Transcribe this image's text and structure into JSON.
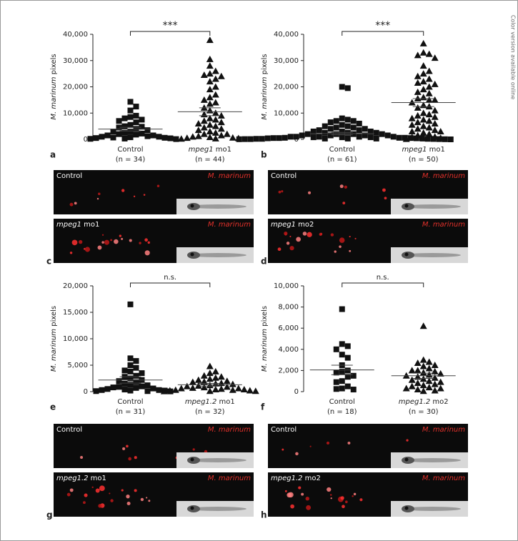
{
  "side_note": "Color version available online",
  "chart_data": [
    {
      "type": "scatter",
      "panel": "a",
      "y_label": [
        {
          "text": "M. marinum",
          "italic": true
        },
        {
          "text": " pixels"
        }
      ],
      "ylim": [
        0,
        40000
      ],
      "yticks": [
        0,
        {
          "value": 10000,
          "label": "10,000"
        },
        {
          "value": 20000,
          "label": "20,000"
        },
        {
          "value": 30000,
          "label": "30,000"
        },
        {
          "value": 40000,
          "label": "40,000"
        }
      ],
      "significance": "***",
      "groups": [
        {
          "name": [
            {
              "text": "Control"
            }
          ],
          "n_label": "(n = 34)",
          "marker": "square",
          "color": "#111111",
          "mean": 3900,
          "sem": 700,
          "values": [
            14300,
            12500,
            11000,
            9000,
            8500,
            8000,
            7500,
            7000,
            6500,
            5500,
            5000,
            4800,
            4500,
            4000,
            3500,
            3000,
            3000,
            2500,
            2200,
            2000,
            1800,
            1500,
            1500,
            1200,
            1000,
            1000,
            800,
            700,
            600,
            500,
            400,
            300,
            200,
            100
          ]
        },
        {
          "name": [
            {
              "text": "mpeg1",
              "italic": true
            },
            {
              "text": " mo1"
            }
          ],
          "n_label": "(n = 44)",
          "marker": "triangle",
          "color": "#111111",
          "mean": 10500,
          "sem": 1500,
          "values": [
            37800,
            30500,
            28000,
            26000,
            25000,
            24500,
            24000,
            23000,
            22000,
            20000,
            19000,
            17000,
            16000,
            15000,
            14000,
            13500,
            12000,
            11000,
            10000,
            9500,
            9000,
            8000,
            7500,
            7000,
            6500,
            6000,
            5500,
            5000,
            4500,
            4000,
            3500,
            3000,
            2500,
            2000,
            2000,
            1500,
            1200,
            1000,
            800,
            600,
            500,
            400,
            300,
            200
          ]
        }
      ]
    },
    {
      "type": "scatter",
      "panel": "b",
      "y_label": [
        {
          "text": "M. marinum",
          "italic": true
        },
        {
          "text": " pixels"
        }
      ],
      "ylim": [
        0,
        40000
      ],
      "yticks": [
        0,
        {
          "value": 10000,
          "label": "10,000"
        },
        {
          "value": 20000,
          "label": "20,000"
        },
        {
          "value": 30000,
          "label": "30,000"
        },
        {
          "value": 40000,
          "label": "40,000"
        }
      ],
      "significance": "***",
      "groups": [
        {
          "name": [
            {
              "text": "Control"
            }
          ],
          "n_label": "(n = 61)",
          "marker": "square",
          "color": "#111111",
          "mean": 2200,
          "sem": 450,
          "values": [
            20000,
            19500,
            8000,
            7500,
            7000,
            7000,
            6500,
            6000,
            5500,
            5000,
            5000,
            4500,
            4500,
            4000,
            4000,
            3500,
            3500,
            3000,
            3000,
            3000,
            2500,
            2500,
            2500,
            2000,
            2000,
            2000,
            2000,
            1500,
            1500,
            1500,
            1500,
            1000,
            1000,
            1000,
            1000,
            1000,
            800,
            800,
            800,
            600,
            600,
            600,
            500,
            500,
            500,
            400,
            400,
            400,
            300,
            300,
            300,
            200,
            200,
            200,
            150,
            100,
            100,
            100,
            50,
            50,
            0
          ]
        },
        {
          "name": [
            {
              "text": "mpeg1",
              "italic": true
            },
            {
              "text": " mo1"
            }
          ],
          "n_label": "(n = 50)",
          "marker": "triangle",
          "color": "#111111",
          "mean": 14000,
          "sem": 1500,
          "values": [
            36500,
            33000,
            32500,
            32000,
            31000,
            28000,
            26000,
            25000,
            24000,
            23000,
            22000,
            21500,
            21000,
            20000,
            19000,
            18000,
            17500,
            16000,
            15500,
            15000,
            15000,
            14000,
            13000,
            12500,
            12000,
            11000,
            10000,
            9500,
            9000,
            8500,
            8000,
            7500,
            7000,
            6500,
            6000,
            5500,
            5000,
            4500,
            4000,
            3500,
            3000,
            3000,
            2500,
            2000,
            1500,
            1000,
            800,
            500,
            300,
            100
          ]
        }
      ]
    },
    {
      "type": "scatter",
      "panel": "e",
      "y_label": [
        {
          "text": "M. marinum",
          "italic": true
        },
        {
          "text": " pixels"
        }
      ],
      "ylim": [
        0,
        20000
      ],
      "yticks": [
        0,
        {
          "value": 5000,
          "label": "5,000"
        },
        {
          "value": 10000,
          "label": "10,000"
        },
        {
          "value": 15000,
          "label": "15,000"
        },
        {
          "value": 20000,
          "label": "20,000"
        }
      ],
      "significance": "n.s.",
      "groups": [
        {
          "name": [
            {
              "text": "Control"
            }
          ],
          "n_label": "(n = 31)",
          "marker": "square",
          "color": "#111111",
          "mean": 2200,
          "sem": 600,
          "values": [
            16500,
            6300,
            5800,
            5000,
            4500,
            4000,
            3800,
            3500,
            3000,
            2800,
            2500,
            2200,
            2000,
            1800,
            1500,
            1300,
            1200,
            1000,
            900,
            800,
            700,
            600,
            500,
            400,
            300,
            300,
            200,
            200,
            100,
            100,
            50
          ]
        },
        {
          "name": [
            {
              "text": "mpeg1.2",
              "italic": true
            },
            {
              "text": " mo1"
            }
          ],
          "n_label": "(n = 32)",
          "marker": "triangle",
          "color": "#111111",
          "mean": 1300,
          "sem": 250,
          "values": [
            4800,
            3800,
            3500,
            3000,
            2800,
            2600,
            2400,
            2200,
            2000,
            1900,
            1800,
            1600,
            1500,
            1400,
            1200,
            1100,
            1000,
            900,
            800,
            700,
            600,
            600,
            500,
            400,
            400,
            300,
            300,
            200,
            200,
            100,
            100,
            50
          ]
        }
      ]
    },
    {
      "type": "scatter",
      "panel": "f",
      "y_label": [
        {
          "text": "M. marinum",
          "italic": true
        },
        {
          "text": " pixels"
        }
      ],
      "ylim": [
        0,
        10000
      ],
      "yticks": [
        0,
        {
          "value": 2000,
          "label": "2,000"
        },
        {
          "value": 4000,
          "label": "4,000"
        },
        {
          "value": 6000,
          "label": "6,000"
        },
        {
          "value": 8000,
          "label": "8,000"
        },
        {
          "value": 10000,
          "label": "10,000"
        }
      ],
      "significance": "n.s.",
      "groups": [
        {
          "name": [
            {
              "text": "Control"
            }
          ],
          "n_label": "(n = 18)",
          "marker": "square",
          "color": "#111111",
          "mean": 2050,
          "sem": 450,
          "values": [
            7800,
            4500,
            4300,
            4000,
            3500,
            3200,
            2500,
            2000,
            1900,
            1800,
            1500,
            1400,
            1000,
            900,
            500,
            300,
            250,
            200
          ]
        },
        {
          "name": [
            {
              "text": "mpeg1.2",
              "italic": true
            },
            {
              "text": " mo2"
            }
          ],
          "n_label": "(n = 30)",
          "marker": "triangle",
          "color": "#111111",
          "mean": 1500,
          "sem": 250,
          "values": [
            6200,
            3000,
            2800,
            2700,
            2500,
            2400,
            2200,
            2000,
            2000,
            1900,
            1800,
            1700,
            1600,
            1500,
            1400,
            1300,
            1200,
            1100,
            1000,
            900,
            800,
            700,
            600,
            500,
            400,
            300,
            300,
            200,
            100,
            50
          ]
        }
      ]
    }
  ],
  "image_panels": [
    {
      "panel": "c",
      "rows": [
        {
          "label": [
            {
              "text": "Control"
            }
          ],
          "stain": "M. marinum"
        },
        {
          "label": [
            {
              "text": "mpeg1",
              "italic": true
            },
            {
              "text": " mo1"
            }
          ],
          "stain": "M. marinum"
        }
      ]
    },
    {
      "panel": "d",
      "rows": [
        {
          "label": [
            {
              "text": "Control"
            }
          ],
          "stain": "M. marinum"
        },
        {
          "label": [
            {
              "text": "mpeg1",
              "italic": true
            },
            {
              "text": " mo2"
            }
          ],
          "stain": "M. marinum"
        }
      ]
    },
    {
      "panel": "g",
      "rows": [
        {
          "label": [
            {
              "text": "Control"
            }
          ],
          "stain": "M. marinum"
        },
        {
          "label": [
            {
              "text": "mpeg1.2",
              "italic": true
            },
            {
              "text": " mo1"
            }
          ],
          "stain": "M. marinum"
        }
      ]
    },
    {
      "panel": "h",
      "rows": [
        {
          "label": [
            {
              "text": "Control"
            }
          ],
          "stain": "M. marinum"
        },
        {
          "label": [
            {
              "text": "mpeg1.2",
              "italic": true
            },
            {
              "text": " mo2"
            }
          ],
          "stain": "M. marinum"
        }
      ]
    }
  ]
}
